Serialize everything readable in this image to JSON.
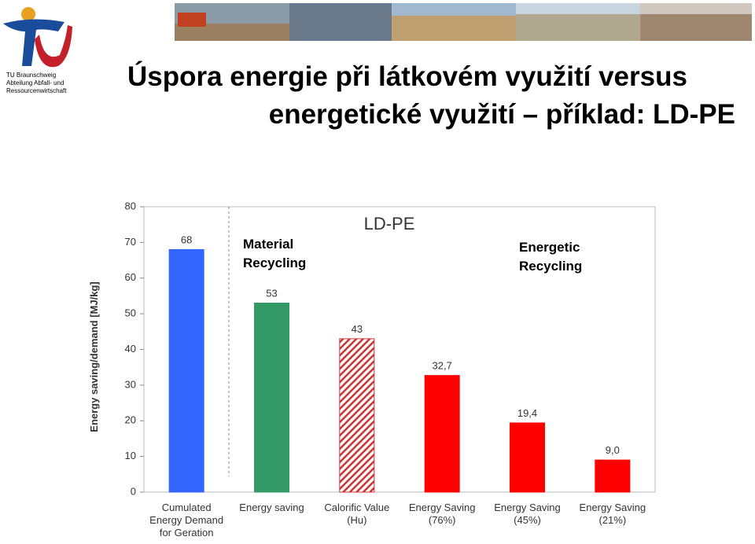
{
  "header": {
    "title_lines": [
      "Úspora energie při látkovém využití versus",
      "energetické využití – příklad:  LD-PE"
    ],
    "logo_lines": [
      "TU Braunschweig",
      "Abteilung Abfall- und",
      "Ressourcenwirtschaft"
    ]
  },
  "chart_data": {
    "type": "bar",
    "title": "LD-PE",
    "y_label": "Energy saving/demand [MJ/kg]",
    "annotations": [
      {
        "text": "Material\nRecycling",
        "color": "#2e9a5e"
      },
      {
        "text": "Energetic\nRecycling",
        "color": "#ff2020"
      }
    ],
    "categories": [
      "Cumulated\nEnergy Demand\nfor Geration",
      "Energy saving",
      "Calorific Value\n(Hu)",
      "Energy Saving\n(76%)",
      "Energy Saving\n(45%)",
      "Energy Saving\n(21%)"
    ],
    "values": [
      68,
      53,
      43,
      32.7,
      19.4,
      9.0
    ],
    "value_labels": [
      "68",
      "53",
      "43",
      "32,7",
      "19,4",
      "9,0"
    ],
    "colors": [
      "#3366ff",
      "#339966",
      "#cc3333",
      "#ff0000",
      "#ff0000",
      "#ff0000"
    ],
    "hatched": [
      false,
      false,
      true,
      false,
      false,
      false
    ],
    "ylim": [
      0,
      80
    ],
    "yticks": [
      0,
      10,
      20,
      30,
      40,
      50,
      60,
      70,
      80
    ],
    "grid": false
  }
}
